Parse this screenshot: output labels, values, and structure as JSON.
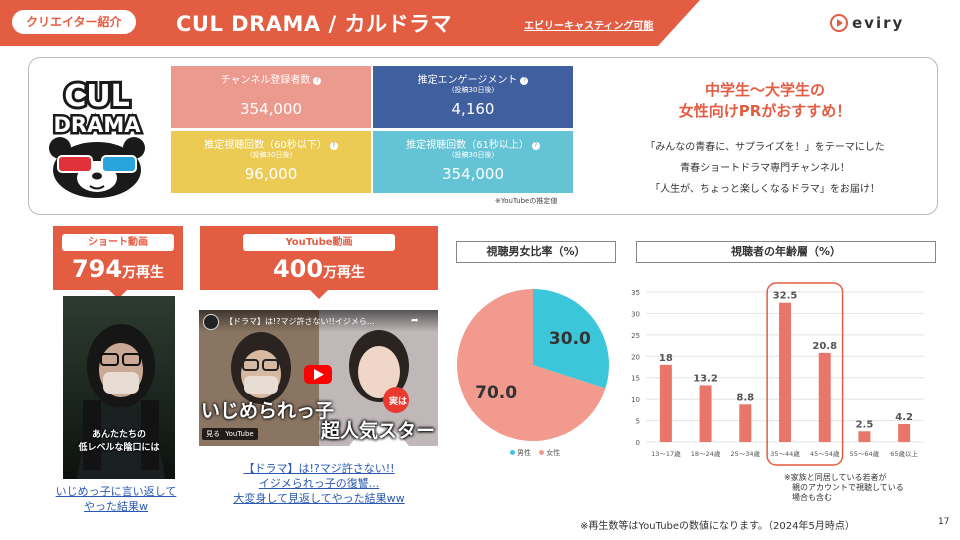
{
  "header": {
    "category": "クリエイター紹介",
    "title": "CUL DRAMA / カルドラマ",
    "casting": "エビリーキャスティング可能",
    "brand": "eviry"
  },
  "logo": {
    "text_top": "CUL",
    "text_bottom": "DRAMA"
  },
  "stats": [
    {
      "label": "チャンネル登録者数",
      "sub": "",
      "value": "354,000",
      "color": "#ec9a8d"
    },
    {
      "label": "推定エンゲージメント",
      "sub": "(投稿30日後)",
      "value": "4,160",
      "color": "#3f5f9f"
    },
    {
      "label": "推定視聴回数（60秒以下）",
      "sub": "(投稿30日後)",
      "value": "96,000",
      "color": "#eccb55"
    },
    {
      "label": "推定視聴回数（61秒以上）",
      "sub": "(投稿30日後)",
      "value": "354,000",
      "color": "#64c4d6"
    }
  ],
  "stats_note": "※YouTubeの推定値",
  "headline": {
    "line1": "中学生〜大学生の",
    "line2": "女性向けPRがおすすめ！"
  },
  "description": [
    "「みんなの青春に、サプライズを！」をテーマにした",
    "青春ショートドラマ専門チャンネル！",
    "「人生が、ちょっと楽しくなるドラマ」をお届け！"
  ],
  "short_video": {
    "tag": "ショート動画",
    "views_num": "794",
    "views_unit": "万再生",
    "subtitle": [
      "あんたたちの",
      "低レベルな陰口には"
    ],
    "caption": [
      "いじめっ子に言い返して",
      "やった結果w"
    ]
  },
  "youtube_video": {
    "tag": "YouTube動画",
    "views_num": "400",
    "views_unit": "万再生",
    "thumb_title": "【ドラマ】は!?マジ許さない!!イジメら...",
    "watch_label": "見る",
    "yt_label": "YouTube",
    "overlay_left": "いじめられっ子",
    "overlay_jitsu": "実は",
    "overlay_right": "超人気スター",
    "caption": [
      "【ドラマ】は!?マジ許さない!!",
      "イジメられっ子の復讐...",
      "大変身して見返してやった結果ww"
    ]
  },
  "gender_title": "視聴男女比率（%）",
  "age_title": "視聴者の年齢層（%）",
  "chart_data": [
    {
      "type": "pie",
      "title": "視聴男女比率（%）",
      "series": [
        {
          "name": "男性",
          "value": 30.0,
          "label": "30.0",
          "color": "#3cc6d9"
        },
        {
          "name": "女性",
          "value": 70.0,
          "label": "70.0",
          "color": "#f39a8f"
        }
      ],
      "legend": "bottom"
    },
    {
      "type": "bar",
      "title": "視聴者の年齢層（%）",
      "categories": [
        "13〜17歳",
        "18〜24歳",
        "25〜34歳",
        "35〜44歳",
        "45〜54歳",
        "55〜64歳",
        "65歳以上"
      ],
      "values": [
        18,
        13.2,
        8.8,
        32.5,
        20.8,
        2.5,
        4.2
      ],
      "labels": [
        "18",
        "13.2",
        "8.8",
        "32.5",
        "20.8",
        "2.5",
        "4.2"
      ],
      "yticks": [
        0,
        5,
        10,
        15,
        20,
        25,
        30,
        35
      ],
      "ylim": [
        0,
        35
      ],
      "grid": true,
      "bar_color": "#e8766a",
      "highlight_range": [
        "35〜44歳",
        "45〜54歳"
      ]
    }
  ],
  "age_note": [
    "※家族と同居している若者が",
    "　親のアカウントで視聴している",
    "　場合も含む"
  ],
  "footer_note": "※再生数等はYouTubeの数値になります。（2024年5月時点）",
  "page_number": "17"
}
